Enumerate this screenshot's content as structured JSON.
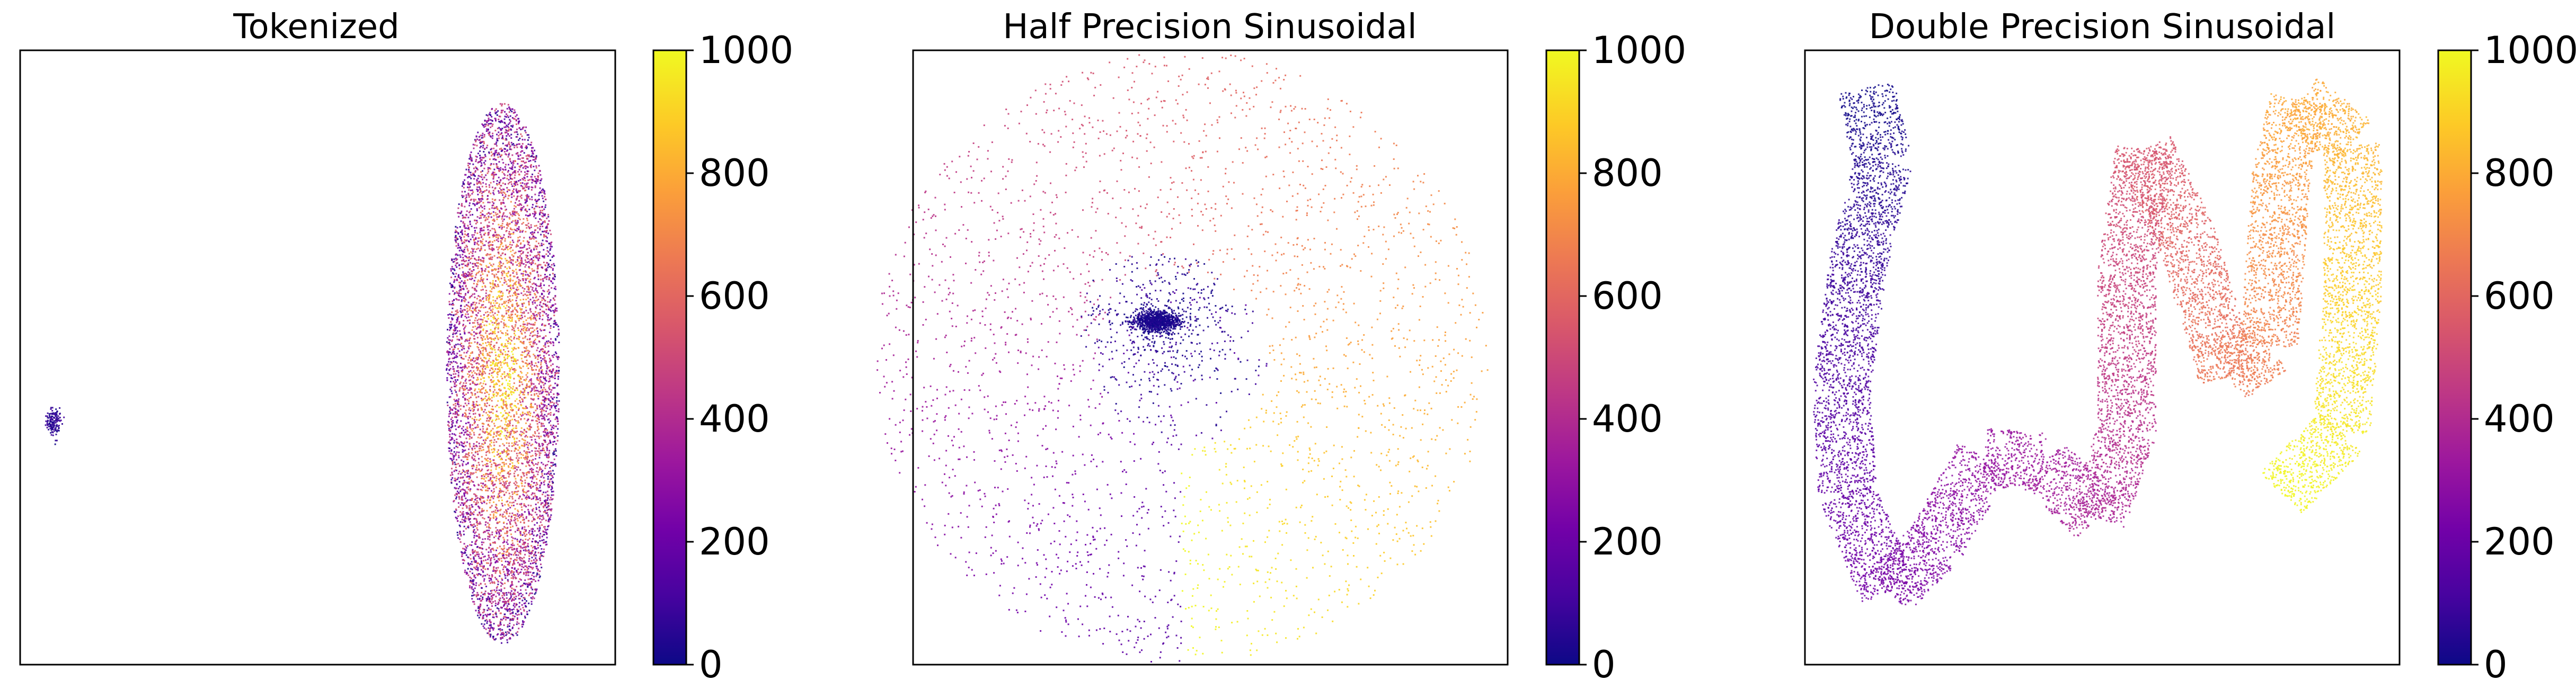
{
  "chart_data": [
    {
      "type": "scatter",
      "title": "Tokenized",
      "xlabel": "",
      "ylabel": "",
      "colormap": "plasma",
      "color_range": [
        0,
        1000
      ],
      "colorbar_ticks": [
        "0",
        "200",
        "400",
        "600",
        "800",
        "1000"
      ],
      "axis_ticks_visible": false,
      "grid": false,
      "clusters": [
        {
          "shape": "small-blob",
          "center": [
            0.055,
            0.605
          ],
          "color_value_range": [
            0,
            120
          ]
        },
        {
          "shape": "vertical-ellipse",
          "center": [
            0.81,
            0.525
          ],
          "color_value_range": [
            100,
            1000
          ]
        }
      ]
    },
    {
      "type": "scatter",
      "title": "Half Precision Sinusoidal",
      "xlabel": "",
      "ylabel": "",
      "colormap": "plasma",
      "color_range": [
        0,
        1000
      ],
      "colorbar_ticks": [
        "0",
        "200",
        "400",
        "600",
        "800",
        "1000"
      ],
      "axis_ticks_visible": false,
      "grid": false,
      "clusters": [
        {
          "shape": "dense-core",
          "center": [
            0.41,
            0.44
          ],
          "color_value_range": [
            0,
            60
          ]
        },
        {
          "shape": "sparse-disk",
          "center": [
            0.45,
            0.5
          ],
          "color_value_range": [
            0,
            1000
          ]
        }
      ]
    },
    {
      "type": "scatter",
      "title": "Double Precision Sinusoidal",
      "xlabel": "",
      "ylabel": "",
      "colormap": "plasma",
      "color_range": [
        0,
        1000
      ],
      "colorbar_ticks": [
        "0",
        "200",
        "400",
        "600",
        "800",
        "1000"
      ],
      "axis_ticks_visible": false,
      "grid": false,
      "clusters": [
        {
          "shape": "snake-curve",
          "color_value_range": [
            0,
            1000
          ]
        }
      ]
    }
  ],
  "colors": {
    "plasma": [
      "#0d0887",
      "#46039f",
      "#7201a8",
      "#9c179e",
      "#bd3786",
      "#d8576b",
      "#ed7953",
      "#fb9f3a",
      "#fdca26",
      "#f0f921"
    ],
    "axes": "#000000",
    "background": "#ffffff"
  }
}
